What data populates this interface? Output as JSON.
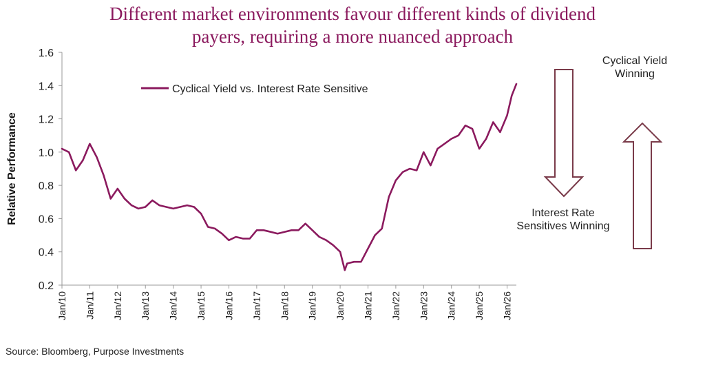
{
  "title_lines": [
    "Different market environments favour different kinds of dividend",
    "payers, requiring a more nuanced approach"
  ],
  "source": "Source: Bloomberg, Purpose Investments",
  "annotations": {
    "cyclical": [
      "Cyclical Yield",
      "Winning"
    ],
    "interest": [
      "Interest Rate",
      "Sensitives Winning"
    ]
  },
  "colors": {
    "series": "#8b1a5e",
    "arrow": "#7a3b4a",
    "title": "#8b1a5e"
  },
  "chart_data": {
    "type": "line",
    "ylabel": "Relative Performance",
    "xlabel": "",
    "ylim": [
      0.2,
      1.6
    ],
    "yticks": [
      0.2,
      0.4,
      0.6,
      0.8,
      1.0,
      1.2,
      1.4,
      1.6
    ],
    "ytick_labels": [
      "0.2",
      "0.4",
      "0.6",
      "0.8",
      "1.0",
      "1.2",
      "1.4",
      "1.6"
    ],
    "xlim": [
      "2010-01",
      "2026-05"
    ],
    "xtick_labels": [
      "Jan/10",
      "Jan/11",
      "Jan/12",
      "Jan/13",
      "Jan/14",
      "Jan/15",
      "Jan/16",
      "Jan/17",
      "Jan/18",
      "Jan/19",
      "Jan/20",
      "Jan/21",
      "Jan/22",
      "Jan/23",
      "Jan/24",
      "Jan/25",
      "Jan/26"
    ],
    "legend_position": "top-left",
    "series": [
      {
        "name": "Cyclical Yield vs. Interest Rate Sensitive",
        "x": [
          "2010-01",
          "2010-04",
          "2010-07",
          "2010-10",
          "2011-01",
          "2011-04",
          "2011-07",
          "2011-10",
          "2012-01",
          "2012-04",
          "2012-07",
          "2012-10",
          "2013-01",
          "2013-04",
          "2013-07",
          "2013-10",
          "2014-01",
          "2014-04",
          "2014-07",
          "2014-10",
          "2015-01",
          "2015-04",
          "2015-07",
          "2015-10",
          "2016-01",
          "2016-04",
          "2016-07",
          "2016-10",
          "2017-01",
          "2017-04",
          "2017-07",
          "2017-10",
          "2018-01",
          "2018-04",
          "2018-07",
          "2018-10",
          "2019-01",
          "2019-04",
          "2019-07",
          "2019-10",
          "2020-01",
          "2020-03",
          "2020-04",
          "2020-07",
          "2020-10",
          "2021-01",
          "2021-04",
          "2021-07",
          "2021-10",
          "2022-01",
          "2022-04",
          "2022-07",
          "2022-10",
          "2023-01",
          "2023-04",
          "2023-07",
          "2023-10",
          "2024-01",
          "2024-04",
          "2024-07",
          "2024-10",
          "2025-01",
          "2025-04",
          "2025-07",
          "2025-10",
          "2026-01",
          "2026-03",
          "2026-05"
        ],
        "y": [
          1.02,
          1.0,
          0.89,
          0.95,
          1.05,
          0.97,
          0.86,
          0.72,
          0.78,
          0.72,
          0.68,
          0.66,
          0.67,
          0.71,
          0.68,
          0.67,
          0.66,
          0.67,
          0.68,
          0.67,
          0.63,
          0.55,
          0.54,
          0.51,
          0.47,
          0.49,
          0.48,
          0.48,
          0.53,
          0.53,
          0.52,
          0.51,
          0.52,
          0.53,
          0.53,
          0.57,
          0.53,
          0.49,
          0.47,
          0.44,
          0.4,
          0.29,
          0.33,
          0.34,
          0.34,
          0.42,
          0.5,
          0.54,
          0.73,
          0.83,
          0.88,
          0.9,
          0.89,
          1.0,
          0.92,
          1.02,
          1.05,
          1.08,
          1.1,
          1.16,
          1.14,
          1.02,
          1.08,
          1.18,
          1.12,
          1.22,
          1.34,
          1.41
        ]
      }
    ]
  }
}
